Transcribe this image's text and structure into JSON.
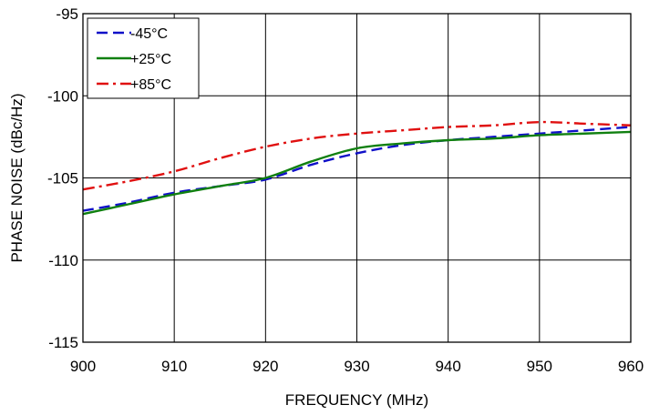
{
  "chart_data": {
    "type": "line",
    "xlabel": "FREQUENCY (MHz)",
    "ylabel": "PHASE NOISE  (dBc/Hz)",
    "xlim": [
      900,
      960
    ],
    "ylim": [
      -115,
      -95
    ],
    "x_ticks": [
      "900",
      "910",
      "920",
      "930",
      "940",
      "950",
      "960"
    ],
    "y_ticks": [
      "-95",
      "-100",
      "-105",
      "-110",
      "-115"
    ],
    "grid": true,
    "legend_position": "top-left",
    "x": [
      900,
      905,
      910,
      915,
      920,
      925,
      930,
      935,
      940,
      945,
      950,
      955,
      960
    ],
    "series": [
      {
        "name": "-45°C",
        "color": "#1010c8",
        "dash": "dashed",
        "values": [
          -107.0,
          -106.5,
          -105.9,
          -105.5,
          -105.1,
          -104.2,
          -103.5,
          -103.0,
          -102.7,
          -102.5,
          -102.3,
          -102.1,
          -101.9
        ]
      },
      {
        "name": "+25°C",
        "color": "#108010",
        "dash": "solid",
        "values": [
          -107.2,
          -106.6,
          -106.0,
          -105.5,
          -105.0,
          -104.0,
          -103.2,
          -102.9,
          -102.7,
          -102.6,
          -102.4,
          -102.3,
          -102.2
        ]
      },
      {
        "name": "+85°C",
        "color": "#e01010",
        "dash": "dash-dot",
        "values": [
          -105.7,
          -105.2,
          -104.6,
          -103.8,
          -103.1,
          -102.6,
          -102.3,
          -102.1,
          -101.9,
          -101.8,
          -101.6,
          -101.7,
          -101.8
        ]
      }
    ]
  }
}
